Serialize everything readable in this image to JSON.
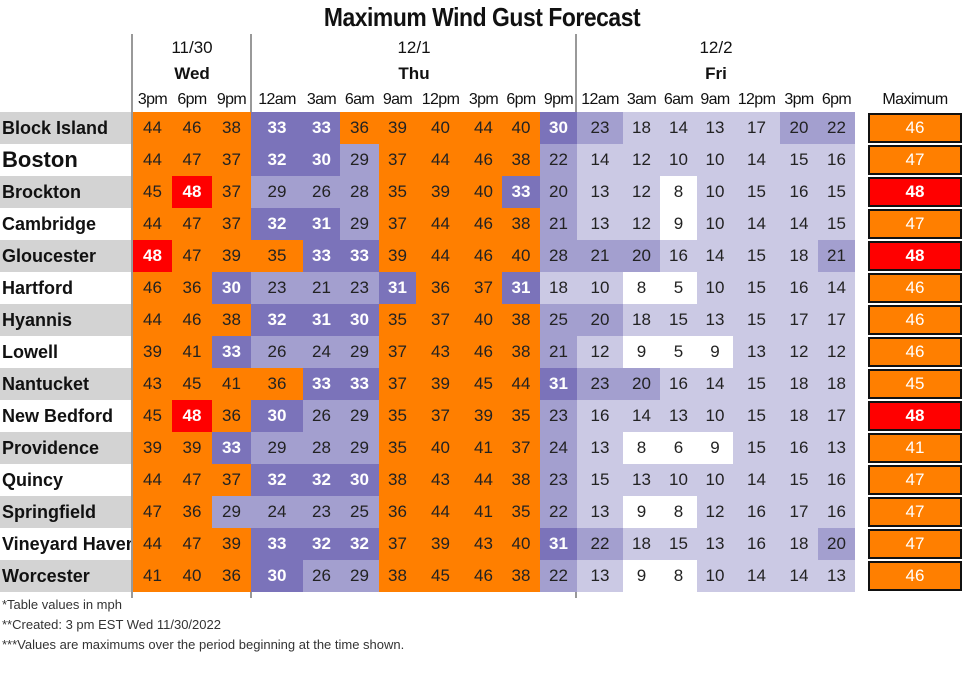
{
  "title": "Maximum Wind Gust Forecast",
  "day_groups": [
    {
      "date": "11/30",
      "day": "Wed"
    },
    {
      "date": "12/1",
      "day": "Thu"
    },
    {
      "date": "12/2",
      "day": "Fri"
    }
  ],
  "times": [
    "3pm",
    "6pm",
    "9pm",
    "12am",
    "3am",
    "6am",
    "9am",
    "12pm",
    "3pm",
    "6pm",
    "9pm",
    "12am",
    "3am",
    "6am",
    "9am",
    "12pm",
    "3pm",
    "6pm"
  ],
  "max_header": "Maximum",
  "colors": {
    "high": "#ff0000",
    "strong": "#ff7f00",
    "medium_dark": "#7b73ba",
    "medium": "#a39fcf",
    "light": "#cbc9e4",
    "calm": "#ffffff",
    "name_bg_alt": "#d3d3d3"
  },
  "chart_data": {
    "type": "table",
    "title": "Maximum Wind Gust Forecast",
    "columns": [
      "3pm",
      "6pm",
      "9pm",
      "12am",
      "3am",
      "6am",
      "9am",
      "12pm",
      "3pm",
      "6pm",
      "9pm",
      "12am",
      "3am",
      "6am",
      "9am",
      "12pm",
      "3pm",
      "6pm"
    ],
    "rows": [
      {
        "name": "Block Island",
        "values": [
          44,
          46,
          38,
          33,
          33,
          36,
          39,
          40,
          44,
          40,
          30,
          23,
          18,
          14,
          13,
          17,
          20,
          22
        ],
        "max": 46
      },
      {
        "name": "Boston",
        "values": [
          44,
          47,
          37,
          32,
          30,
          29,
          37,
          44,
          46,
          38,
          22,
          14,
          12,
          10,
          10,
          14,
          15,
          16
        ],
        "max": 47
      },
      {
        "name": "Brockton",
        "values": [
          45,
          48,
          37,
          29,
          26,
          28,
          35,
          39,
          40,
          33,
          20,
          13,
          12,
          8,
          10,
          15,
          16,
          15
        ],
        "max": 48
      },
      {
        "name": "Cambridge",
        "values": [
          44,
          47,
          37,
          32,
          31,
          29,
          37,
          44,
          46,
          38,
          21,
          13,
          12,
          9,
          10,
          14,
          14,
          15
        ],
        "max": 47
      },
      {
        "name": "Gloucester",
        "values": [
          48,
          47,
          39,
          35,
          33,
          33,
          39,
          44,
          46,
          40,
          28,
          21,
          20,
          16,
          14,
          15,
          18,
          21
        ],
        "max": 48
      },
      {
        "name": "Hartford",
        "values": [
          46,
          36,
          30,
          23,
          21,
          23,
          31,
          36,
          37,
          31,
          18,
          10,
          8,
          5,
          10,
          15,
          16,
          14
        ],
        "max": 46
      },
      {
        "name": "Hyannis",
        "values": [
          44,
          46,
          38,
          32,
          31,
          30,
          35,
          37,
          40,
          38,
          25,
          20,
          18,
          15,
          13,
          15,
          17,
          17
        ],
        "max": 46
      },
      {
        "name": "Lowell",
        "values": [
          39,
          41,
          33,
          26,
          24,
          29,
          37,
          43,
          46,
          38,
          21,
          12,
          9,
          5,
          9,
          13,
          12,
          12
        ],
        "max": 46
      },
      {
        "name": "Nantucket",
        "values": [
          43,
          45,
          41,
          36,
          33,
          33,
          37,
          39,
          45,
          44,
          31,
          23,
          20,
          16,
          14,
          15,
          18,
          18
        ],
        "max": 45
      },
      {
        "name": "New Bedford",
        "values": [
          45,
          48,
          36,
          30,
          26,
          29,
          35,
          37,
          39,
          35,
          23,
          16,
          14,
          13,
          10,
          15,
          18,
          17
        ],
        "max": 48
      },
      {
        "name": "Providence",
        "values": [
          39,
          39,
          33,
          29,
          28,
          29,
          35,
          40,
          41,
          37,
          24,
          13,
          8,
          6,
          9,
          15,
          16,
          13
        ],
        "max": 41
      },
      {
        "name": "Quincy",
        "values": [
          44,
          47,
          37,
          32,
          32,
          30,
          38,
          43,
          44,
          38,
          23,
          15,
          13,
          10,
          10,
          14,
          15,
          16
        ],
        "max": 47
      },
      {
        "name": "Springfield",
        "values": [
          47,
          36,
          29,
          24,
          23,
          25,
          36,
          44,
          41,
          35,
          22,
          13,
          9,
          8,
          12,
          16,
          17,
          16
        ],
        "max": 47
      },
      {
        "name": "Vineyard Haven",
        "values": [
          44,
          47,
          39,
          33,
          32,
          32,
          37,
          39,
          43,
          40,
          31,
          22,
          18,
          15,
          13,
          16,
          18,
          20
        ],
        "max": 47
      },
      {
        "name": "Worcester",
        "values": [
          41,
          40,
          36,
          30,
          26,
          29,
          38,
          45,
          46,
          38,
          22,
          13,
          9,
          8,
          10,
          14,
          14,
          13
        ],
        "max": 46
      }
    ]
  },
  "notes": [
    "*Table values in mph",
    "**Created: 3 pm EST Wed 11/30/2022",
    "***Values are maximums over the period beginning at the time shown."
  ]
}
